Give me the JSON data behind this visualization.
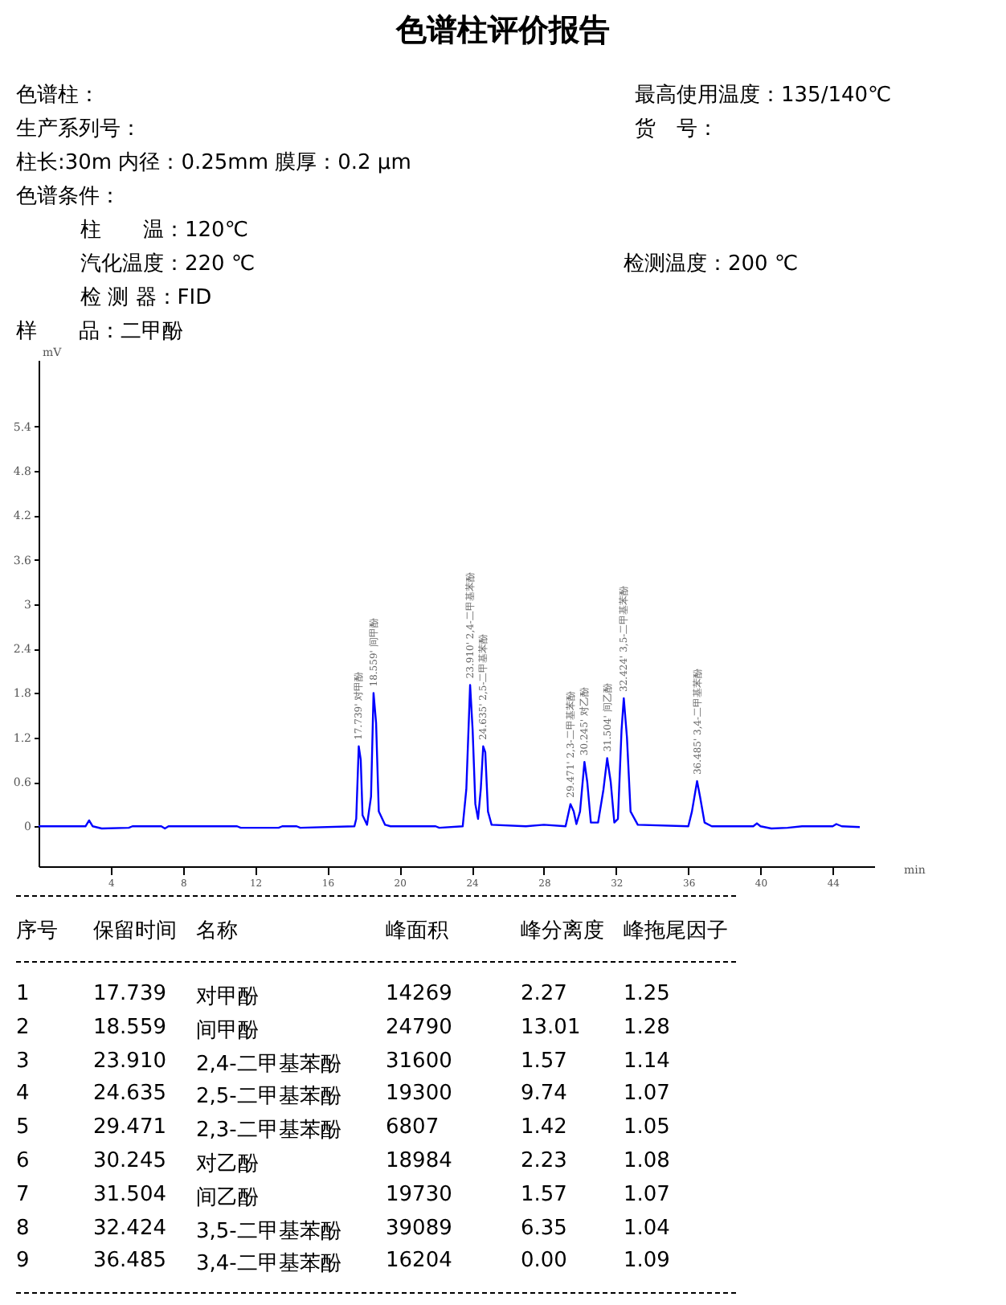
{
  "chart_data": {
    "type": "line",
    "title": "色谱柱评价报告",
    "xlabel": "min",
    "ylabel": "mV",
    "xlim": [
      0,
      46.3
    ],
    "ylim": [
      -0.54,
      6.3
    ],
    "grid": false,
    "xticks": [
      4,
      8,
      12,
      16,
      20,
      24,
      28,
      32,
      36,
      40,
      44
    ],
    "yticks": [
      0,
      0.6,
      1.2,
      1.8,
      2.4,
      3,
      3.6,
      4.2,
      4.8,
      5.4
    ],
    "series": [
      {
        "color": "#0000ff",
        "x": [
          0,
          2.6,
          2.8,
          3.0,
          3.5,
          5,
          5.2,
          6.8,
          7,
          7.2,
          11,
          11.2,
          13.3,
          13.5,
          14.3,
          14.5,
          17.5,
          17.6,
          17.739,
          17.85,
          17.95,
          18.2,
          18.42,
          18.559,
          18.7,
          18.85,
          19.2,
          19.5,
          22,
          22.2,
          23.5,
          23.7,
          23.91,
          24.05,
          24.2,
          24.35,
          24.5,
          24.635,
          24.75,
          24.9,
          25.1,
          27,
          28,
          29.2,
          29.471,
          29.65,
          29.8,
          30.0,
          30.245,
          30.4,
          30.6,
          31.0,
          31.3,
          31.504,
          31.7,
          31.9,
          32.1,
          32.3,
          32.424,
          32.6,
          32.8,
          33.2,
          36.0,
          36.2,
          36.485,
          36.65,
          36.9,
          37.3,
          39.6,
          39.8,
          40,
          40.6,
          41.5,
          42.3,
          44,
          44.2,
          44.5,
          45.5
        ],
        "values": [
          0,
          0,
          0.08,
          0,
          -0.03,
          -0.02,
          0,
          0,
          -0.03,
          0,
          0,
          -0.02,
          -0.02,
          0,
          0,
          -0.02,
          0,
          0.1,
          1.08,
          0.9,
          0.15,
          0.02,
          0.4,
          1.8,
          1.4,
          0.2,
          0.02,
          0,
          0,
          -0.02,
          0,
          0.5,
          1.91,
          1.3,
          0.3,
          0.1,
          0.5,
          1.08,
          1.0,
          0.2,
          0.02,
          0,
          0.02,
          0,
          0.3,
          0.2,
          0.03,
          0.2,
          0.87,
          0.6,
          0.05,
          0.05,
          0.5,
          0.92,
          0.6,
          0.05,
          0.1,
          1.3,
          1.73,
          1.2,
          0.2,
          0.02,
          0,
          0.2,
          0.61,
          0.4,
          0.05,
          0,
          0,
          0.04,
          0,
          -0.03,
          -0.02,
          0,
          0,
          0.03,
          0,
          -0.01
        ]
      }
    ],
    "annotations": [
      "色谱柱：",
      "最高使用温度：135/140℃",
      "生产系列号：",
      "货　号：",
      "柱长:30m  内径：0.25mm  膜厚：0.2 μm",
      "色谱条件：",
      "柱　　温：120℃",
      "汽化温度：220 ℃",
      "检测温度：200 ℃",
      "检 测 器：FID",
      "样　　品：二甲酚",
      {
        "text": "17.739' 对甲酚",
        "x": 17.739,
        "y": 1.08
      },
      {
        "text": "18.559' 间甲酚",
        "x": 18.559,
        "y": 1.8
      },
      {
        "text": "23.910' 2,4-二甲基苯酚",
        "x": 23.91,
        "y": 1.91
      },
      {
        "text": "24.635' 2,5-二甲基苯酚",
        "x": 24.635,
        "y": 1.08
      },
      {
        "text": "29.471' 2,3-二甲基苯酚",
        "x": 29.471,
        "y": 0.3
      },
      {
        "text": "30.245' 对乙酚",
        "x": 30.245,
        "y": 0.87
      },
      {
        "text": "31.504' 间乙酚",
        "x": 31.504,
        "y": 0.92
      },
      {
        "text": "32.424' 3,5-二甲基苯酚",
        "x": 32.424,
        "y": 1.73
      },
      {
        "text": "36.485' 3,4-二甲基苯酚",
        "x": 36.485,
        "y": 0.61
      },
      "序号",
      "保留时间",
      "名称",
      "峰面积",
      "峰分离度",
      "峰拖尾因子",
      "1",
      "17.739",
      "对甲酚",
      "14269",
      "2.27",
      "1.25",
      "2",
      "18.559",
      "间甲酚",
      "24790",
      "13.01",
      "1.28",
      "3",
      "23.910",
      "2,4-二甲基苯酚",
      "31600",
      "1.57",
      "1.14",
      "4",
      "24.635",
      "2,5-二甲基苯酚",
      "19300",
      "9.74",
      "1.07",
      "5",
      "29.471",
      "2,3-二甲基苯酚",
      "6807",
      "1.42",
      "1.05",
      "6",
      "30.245",
      "对乙酚",
      "18984",
      "2.23",
      "1.08",
      "7",
      "31.504",
      "间乙酚",
      "19730",
      "1.57",
      "1.07",
      "8",
      "32.424",
      "3,5-二甲基苯酚",
      "39089",
      "6.35",
      "1.04",
      "9",
      "36.485",
      "3,4-二甲基苯酚",
      "16204",
      "0.00",
      "1.09"
    ]
  }
}
